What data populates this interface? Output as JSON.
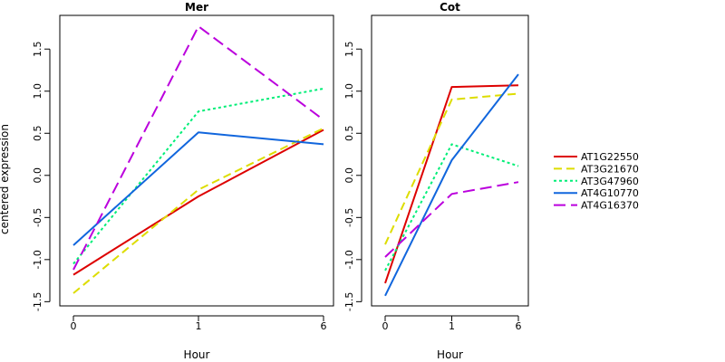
{
  "chart_data": {
    "type": "line",
    "ylabel": "centered expression",
    "xlabel": "Hour",
    "x_categories": [
      "0",
      "1",
      "6"
    ],
    "ylim": [
      -1.55,
      1.9
    ],
    "yticks": [
      -1.5,
      -1.0,
      -0.5,
      0.0,
      0.5,
      1.0,
      1.5
    ],
    "ytick_labels": [
      "-1.5",
      "-1.0",
      "-0.5",
      "0.0",
      "0.5",
      "1.0",
      "1.5"
    ],
    "grid": false,
    "legend_position": "right",
    "panels": [
      {
        "title": "Mer",
        "series": [
          {
            "name": "AT1G22550",
            "color": "#dd0000",
            "dash": "solid",
            "values": [
              -1.18,
              -0.25,
              0.54
            ]
          },
          {
            "name": "AT3G21670",
            "color": "#dddd00",
            "dash": "dashed",
            "values": [
              -1.4,
              -0.17,
              0.56
            ]
          },
          {
            "name": "AT3G47960",
            "color": "#00ee77",
            "dash": "dotted",
            "values": [
              -1.05,
              0.76,
              1.03
            ]
          },
          {
            "name": "AT4G10770",
            "color": "#1166dd",
            "dash": "solid",
            "values": [
              -0.83,
              0.51,
              0.37
            ]
          },
          {
            "name": "AT4G16370",
            "color": "#bb00dd",
            "dash": "longdash",
            "values": [
              -1.12,
              1.77,
              0.66
            ]
          }
        ]
      },
      {
        "title": "Cot",
        "series": [
          {
            "name": "AT1G22550",
            "color": "#dd0000",
            "dash": "solid",
            "values": [
              -1.28,
              1.05,
              1.07
            ]
          },
          {
            "name": "AT3G21670",
            "color": "#dddd00",
            "dash": "dashed",
            "values": [
              -0.82,
              0.9,
              0.97
            ]
          },
          {
            "name": "AT3G47960",
            "color": "#00ee77",
            "dash": "dotted",
            "values": [
              -1.13,
              0.37,
              0.11
            ]
          },
          {
            "name": "AT4G10770",
            "color": "#1166dd",
            "dash": "solid",
            "values": [
              -1.43,
              0.18,
              1.2
            ]
          },
          {
            "name": "AT4G16370",
            "color": "#bb00dd",
            "dash": "longdash",
            "values": [
              -0.97,
              -0.22,
              -0.08
            ]
          }
        ]
      }
    ]
  }
}
